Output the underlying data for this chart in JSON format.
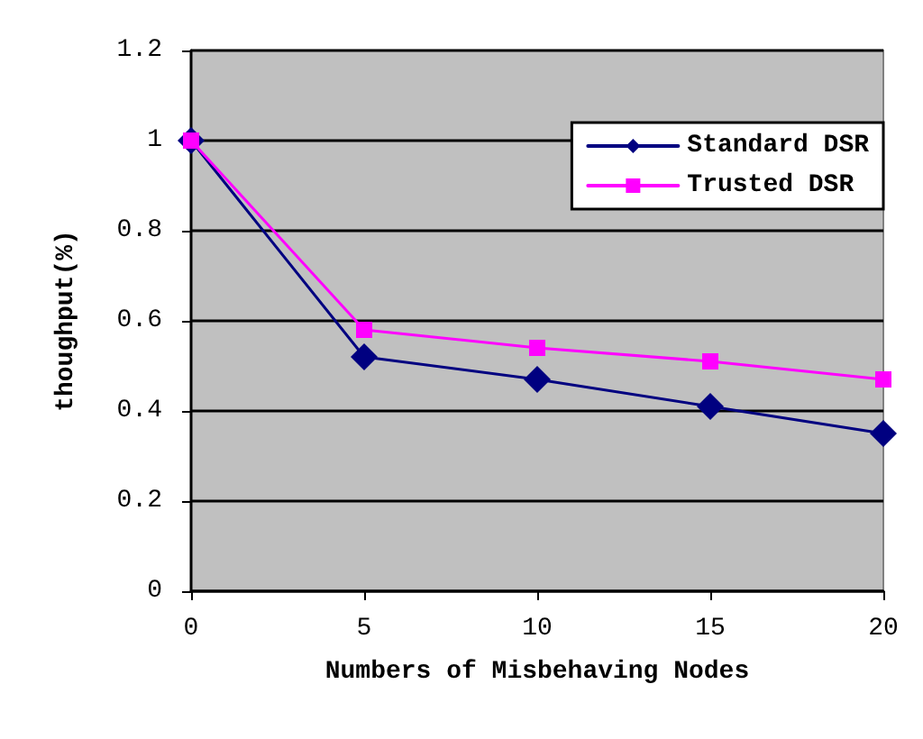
{
  "chart_data": {
    "type": "line",
    "xlabel": "Numbers of Misbehaving Nodes",
    "ylabel": "thoughput(%)",
    "x": [
      0,
      5,
      10,
      15,
      20
    ],
    "xlim": [
      0,
      20
    ],
    "xticks": [
      0,
      5,
      10,
      15,
      20
    ],
    "ylim": [
      0,
      1.2
    ],
    "yticks": [
      0,
      0.2,
      0.4,
      0.6,
      0.8,
      1,
      1.2
    ],
    "series": [
      {
        "name": "Standard DSR",
        "color": "#000080",
        "marker": "diamond",
        "values": [
          1,
          0.52,
          0.47,
          0.41,
          0.35
        ]
      },
      {
        "name": "Trusted DSR",
        "color": "#ff00ff",
        "marker": "square",
        "values": [
          1,
          0.58,
          0.54,
          0.51,
          0.47
        ]
      }
    ],
    "grid": "y",
    "legend": "top right",
    "line_style": "solid"
  }
}
